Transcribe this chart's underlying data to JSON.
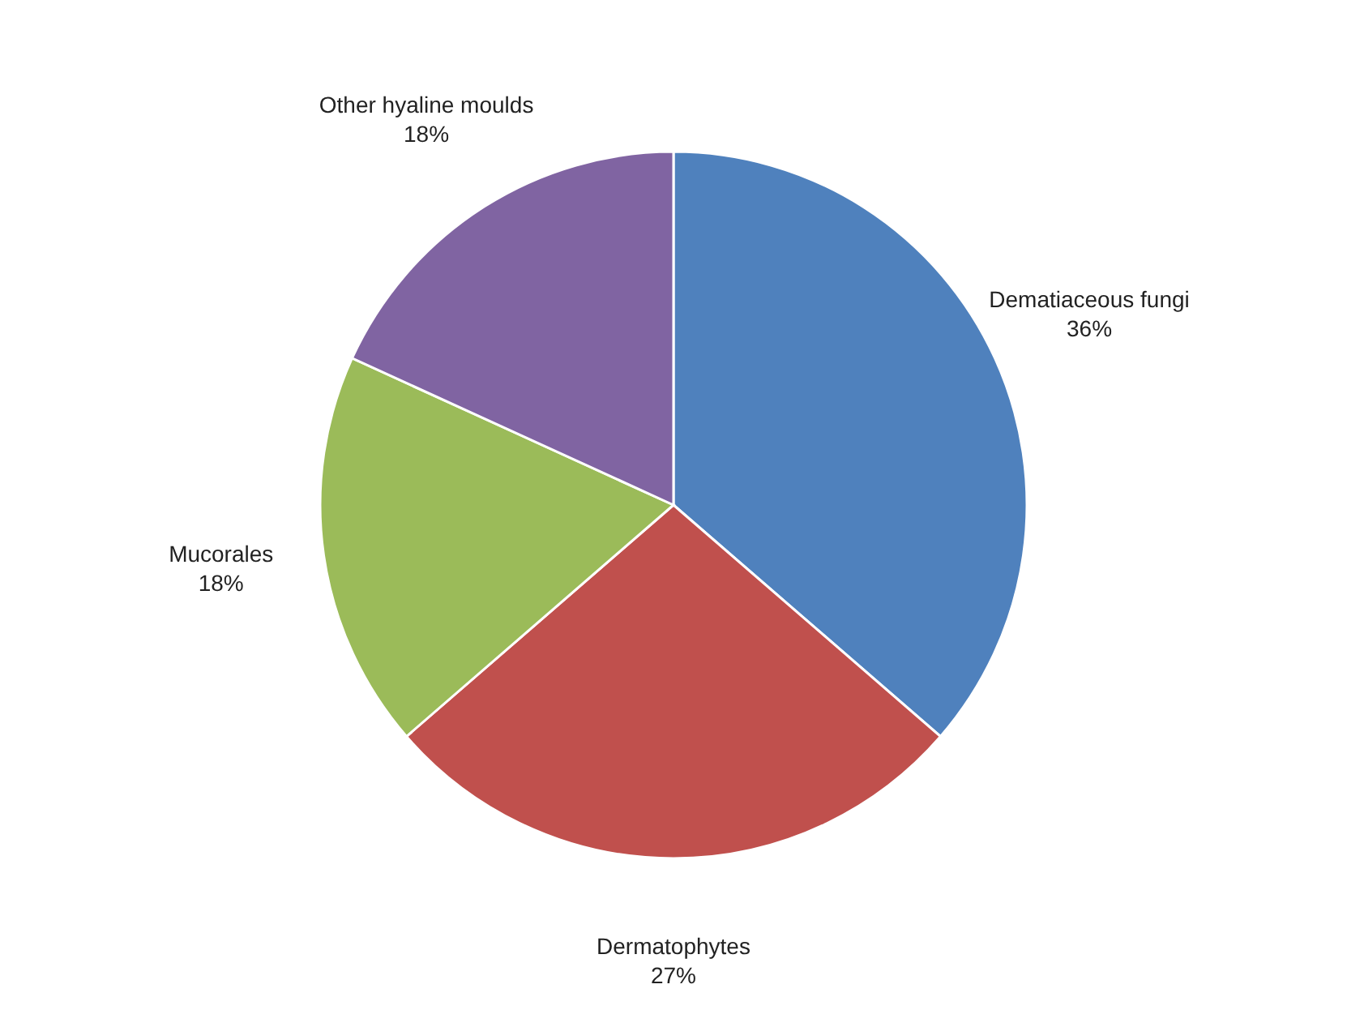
{
  "chart_data": {
    "type": "pie",
    "categories": [
      "Dematiaceous fungi",
      "Dermatophytes",
      "Mucorales",
      "Other hyaline moulds"
    ],
    "values": [
      36,
      27,
      18,
      18
    ],
    "value_labels": [
      "36%",
      "27%",
      "18%",
      "18%"
    ],
    "colors": [
      "#4f81bd",
      "#c0504d",
      "#9bbb59",
      "#8064a2"
    ]
  }
}
